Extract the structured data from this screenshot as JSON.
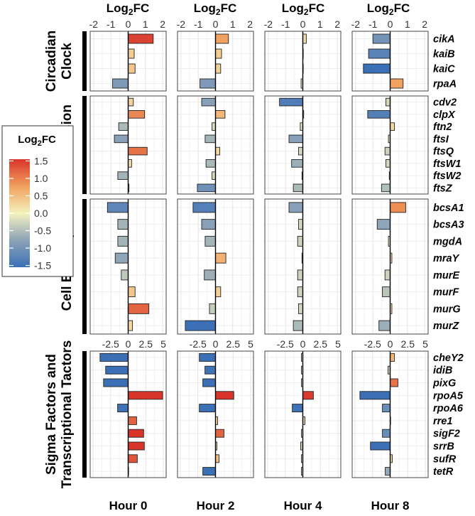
{
  "chart_data": {
    "type": "bar",
    "orientation": "horizontal",
    "facets": "rows = functional group, columns = time point",
    "value_label": "Log2FC",
    "header_labels": [
      "Log2FC",
      "Log2FC",
      "Log2FC",
      "Log2FC"
    ],
    "columns": [
      "Hour 0",
      "Hour 2",
      "Hour 4",
      "Hour 8"
    ],
    "axis_top": {
      "ticks": [
        "-2",
        "-1",
        "0",
        "1",
        "2"
      ],
      "range": [
        -2.2,
        2.2
      ]
    },
    "axis_sigma": {
      "ticks": [
        "-2.5",
        "0",
        "2.5",
        "5"
      ],
      "range": [
        -5.4,
        5.4
      ]
    },
    "groups": [
      {
        "name": "Circadian Clock",
        "label_lines": [
          "Circadian",
          "Clock"
        ],
        "genes": [
          "cikA",
          "kaiB",
          "kaiC",
          "rpaA"
        ],
        "values": [
          [
            1.45,
            0.35,
            0.4,
            -0.9
          ],
          [
            0.75,
            0.35,
            0.3,
            -0.9
          ],
          [
            0.2,
            0.0,
            0.0,
            -0.1
          ],
          [
            -1.0,
            -1.25,
            -1.55,
            0.75
          ]
        ]
      },
      {
        "name": "Cell Division",
        "label_lines": [
          "Cell Division"
        ],
        "genes": [
          "cdv2",
          "clpX",
          "ftn2",
          "ftsI",
          "ftsQ",
          "ftsW1",
          "ftsW2",
          "ftsZ"
        ],
        "values": [
          [
            0.3,
            0.95,
            -0.55,
            -0.8,
            1.1,
            0.2,
            -0.6,
            0.05
          ],
          [
            -0.8,
            0.55,
            -0.2,
            -0.6,
            0.25,
            -0.55,
            -0.2,
            -1.05
          ],
          [
            -1.35,
            0.05,
            -0.15,
            -0.8,
            -0.25,
            -0.65,
            -0.05,
            -0.55
          ],
          [
            -0.25,
            -1.3,
            0.25,
            -0.1,
            -0.3,
            -0.25,
            -0.05,
            -0.5
          ]
        ]
      },
      {
        "name": "Cell Envelope",
        "label_lines": [
          "Cell Envelope"
        ],
        "genes": [
          "bcsA1",
          "bcsA3",
          "mgdA",
          "mraY",
          "murE",
          "murF",
          "murG",
          "murZ"
        ],
        "values": [
          [
            -1.2,
            -0.6,
            -0.6,
            -0.75,
            -0.4,
            0.4,
            1.2,
            0.25
          ],
          [
            -1.3,
            -0.8,
            -0.6,
            0.6,
            -0.65,
            0.3,
            -0.35,
            -1.75
          ],
          [
            -0.8,
            -0.25,
            -0.3,
            -0.05,
            -0.3,
            -0.3,
            -0.25,
            -0.55
          ],
          [
            0.9,
            -0.75,
            -0.1,
            0.1,
            -0.3,
            -0.45,
            0.1,
            -0.65
          ]
        ]
      },
      {
        "name": "Sigma Factors and Transcriptional Tactors",
        "label_lines": [
          "Sigma Factors and",
          "Transcriptional Tactors"
        ],
        "genes": [
          "cheY2",
          "idiB",
          "pixG",
          "rpoA5",
          "rpoA6",
          "rre1",
          "sigF2",
          "srrB",
          "sufR",
          "tetR"
        ],
        "values": [
          [
            -4.0,
            -3.2,
            -3.5,
            4.9,
            -1.5,
            1.2,
            2.2,
            2.3,
            1.3,
            0.0
          ],
          [
            -2.3,
            -1.5,
            -1.8,
            2.6,
            -2.3,
            0.3,
            1.2,
            0.2,
            0.5,
            -1.8
          ],
          [
            -0.2,
            -0.2,
            -0.2,
            1.5,
            -1.5,
            0.3,
            -0.2,
            -0.3,
            -0.2,
            -0.2
          ],
          [
            0.6,
            -0.3,
            1.1,
            -4.3,
            -1.1,
            0.0,
            -1.1,
            -2.8,
            0.3,
            -0.7
          ]
        ]
      }
    ],
    "legend": {
      "title": "Log2FC",
      "ticks": [
        "1.5",
        "1.0",
        "0.5",
        "0.0",
        "-0.5",
        "-1.0",
        "-1.5"
      ],
      "range": [
        -1.55,
        1.55
      ],
      "colors": {
        "low": "#3b6fb6",
        "mid": "#f4f2bd",
        "high": "#d8342a"
      },
      "placement": "left"
    }
  }
}
